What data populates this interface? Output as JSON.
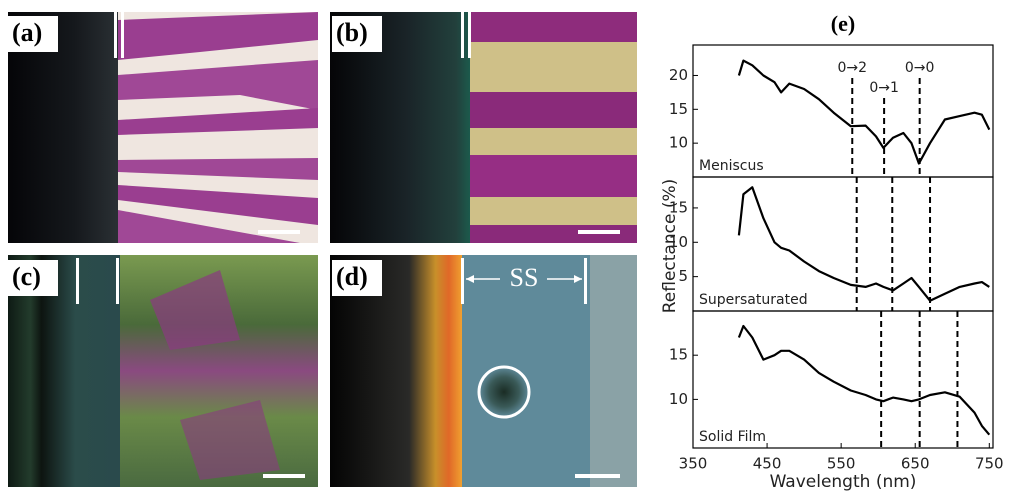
{
  "images": [
    {
      "label": "(a)"
    },
    {
      "label": "(b)"
    },
    {
      "label": "(c)"
    },
    {
      "label": "(d)",
      "annotation": "SS"
    }
  ],
  "chart_data": [
    {
      "type": "line",
      "title": "(e)",
      "y_label": "Reflectance (%)",
      "x": [
        412,
        418,
        430,
        445,
        460,
        469,
        480,
        500,
        520,
        540,
        563,
        583,
        597,
        607,
        620,
        634,
        645,
        655,
        670,
        690,
        710,
        730,
        740,
        750
      ],
      "series": [
        {
          "name": "Meniscus",
          "color": "#000000",
          "values": [
            20,
            22.2,
            21.5,
            20,
            19,
            17.5,
            18.8,
            18,
            16.5,
            14.5,
            12.5,
            12.6,
            11,
            9.3,
            10.8,
            11.5,
            10,
            7,
            10,
            13.5,
            14,
            14.5,
            14.2,
            12
          ]
        }
      ],
      "xlim": [
        350,
        755
      ],
      "ylim": [
        5,
        24.5
      ],
      "yticks": [
        10,
        15,
        20
      ],
      "vlines": [
        565,
        608,
        656
      ],
      "vline_labels": [
        "0→2",
        "0→1",
        "0→0"
      ]
    },
    {
      "type": "line",
      "x": [
        412,
        418,
        430,
        445,
        460,
        469,
        480,
        500,
        520,
        540,
        563,
        583,
        597,
        607,
        620,
        634,
        645,
        655,
        670,
        690,
        710,
        730,
        740,
        750
      ],
      "series": [
        {
          "name": "Supersaturated",
          "color": "#000000",
          "values": [
            11,
            17,
            18,
            13.5,
            10,
            9.2,
            8.8,
            7.2,
            5.8,
            4.8,
            3.8,
            3.5,
            4,
            3.5,
            3,
            4,
            4.8,
            3.5,
            1.5,
            2.5,
            3.5,
            4,
            4.2,
            3.5
          ]
        }
      ],
      "xlim": [
        350,
        755
      ],
      "ylim": [
        0,
        19.5
      ],
      "yticks": [
        5,
        10,
        15
      ],
      "vlines": [
        571,
        619,
        670
      ]
    },
    {
      "type": "line",
      "x_label": "Wavelength (nm)",
      "x": [
        412,
        418,
        430,
        445,
        460,
        469,
        480,
        500,
        520,
        540,
        563,
        583,
        597,
        607,
        620,
        634,
        645,
        655,
        670,
        690,
        710,
        730,
        740,
        750
      ],
      "series": [
        {
          "name": "Solid Film",
          "color": "#000000",
          "values": [
            17,
            18.3,
            17,
            14.5,
            15,
            15.5,
            15.5,
            14.5,
            13,
            12,
            11,
            10.5,
            10,
            9.8,
            10.2,
            10,
            9.8,
            10,
            10.5,
            10.8,
            10.3,
            8.5,
            7,
            6
          ]
        }
      ],
      "xlim": [
        350,
        755
      ],
      "ylim": [
        4.5,
        20
      ],
      "yticks": [
        10,
        15
      ],
      "xticks": [
        350,
        450,
        550,
        650,
        750
      ],
      "vlines": [
        604,
        656,
        707
      ]
    }
  ]
}
